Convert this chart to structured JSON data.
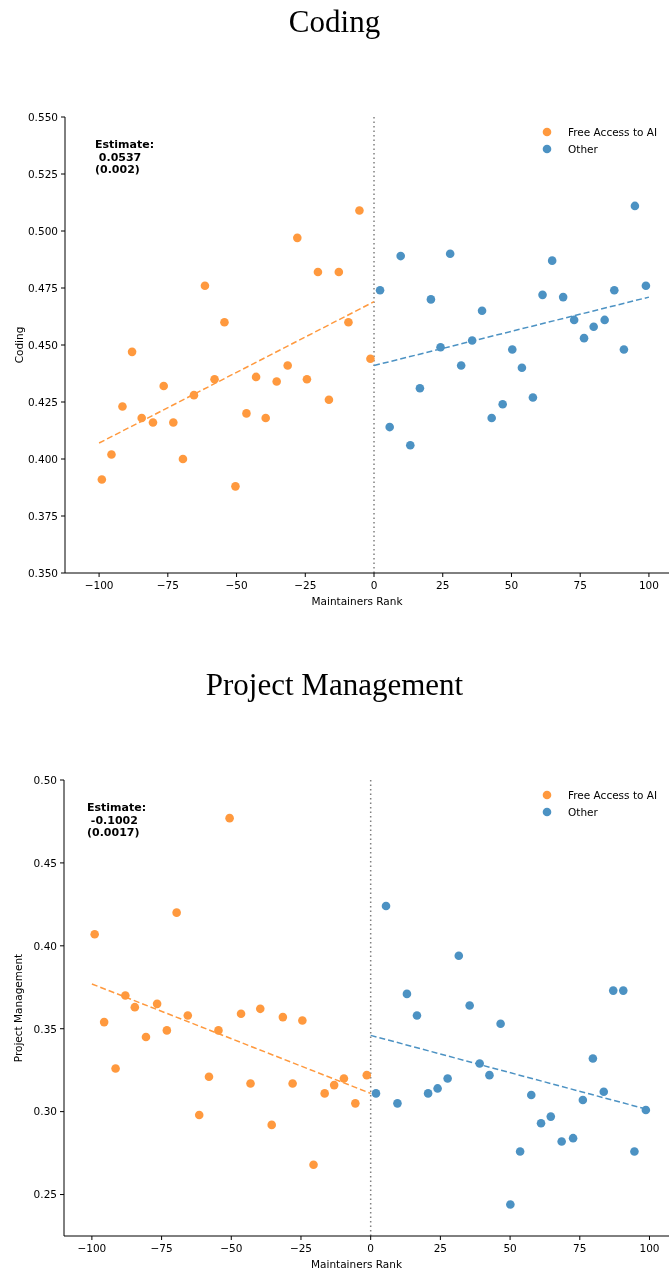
{
  "chart_data": [
    {
      "type": "scatter",
      "title": "Coding",
      "xlabel": "Maintainers Rank",
      "ylabel": "Coding",
      "xlim": [
        -112.4,
        107.3
      ],
      "ylim": [
        0.35,
        0.55
      ],
      "xticks": [
        {
          "value": -100,
          "label": "−100"
        },
        {
          "value": -75,
          "label": "−75"
        },
        {
          "value": -50,
          "label": "−50"
        },
        {
          "value": -25,
          "label": "−25"
        },
        0,
        25,
        50,
        75,
        100
      ],
      "yticks": [
        {
          "value": 0.35,
          "label": "0.350"
        },
        {
          "value": 0.375,
          "label": "0.375"
        },
        {
          "value": 0.4,
          "label": "0.400"
        },
        {
          "value": 0.425,
          "label": "0.425"
        },
        {
          "value": 0.45,
          "label": "0.450"
        },
        {
          "value": 0.475,
          "label": "0.475"
        },
        {
          "value": 0.5,
          "label": "0.500"
        },
        {
          "value": 0.525,
          "label": "0.525"
        },
        {
          "value": 0.55,
          "label": "0.550"
        }
      ],
      "legend": "top right",
      "marker": "circle",
      "grid": false,
      "annotations": [
        "Estimate:\n 0.0537\n(0.002)"
      ],
      "ref_lines": [
        {
          "axis": "x",
          "value": 0,
          "color": "#808080",
          "line_style": "dotted"
        }
      ],
      "series": [
        {
          "name": "Free Access to AI",
          "color": "#ff993e",
          "x": [
            -99.0,
            -95.5,
            -91.5,
            -88.0,
            -84.5,
            -80.4,
            -76.5,
            -73.0,
            -69.5,
            -65.5,
            -61.5,
            -58.0,
            -54.4,
            -50.4,
            -46.4,
            -42.9,
            -39.4,
            -35.4,
            -31.4,
            -27.9,
            -24.4,
            -20.4,
            -16.4,
            -12.8,
            -9.3,
            -5.3,
            -1.3
          ],
          "values": [
            0.391,
            0.402,
            0.423,
            0.447,
            0.418,
            0.416,
            0.432,
            0.416,
            0.4,
            0.428,
            0.476,
            0.435,
            0.46,
            0.388,
            0.42,
            0.436,
            0.418,
            0.434,
            0.441,
            0.497,
            0.435,
            0.482,
            0.426,
            0.482,
            0.46,
            0.509,
            0.444
          ]
        },
        {
          "name": "Other",
          "color": "#4c92c3",
          "x": [
            2.2,
            5.7,
            9.7,
            13.2,
            16.7,
            20.7,
            24.2,
            27.7,
            31.7,
            35.7,
            39.3,
            42.8,
            46.8,
            50.3,
            53.8,
            57.8,
            61.3,
            64.8,
            68.8,
            72.8,
            76.4,
            79.9,
            83.9,
            87.4,
            90.9,
            94.9,
            98.9
          ],
          "values": [
            0.474,
            0.414,
            0.489,
            0.406,
            0.431,
            0.47,
            0.449,
            0.49,
            0.441,
            0.452,
            0.465,
            0.418,
            0.424,
            0.448,
            0.44,
            0.427,
            0.472,
            0.487,
            0.471,
            0.461,
            0.453,
            0.458,
            0.461,
            0.474,
            0.448,
            0.511,
            0.476
          ]
        },
        {
          "color": "#ff993e",
          "type": "line",
          "marker": "none",
          "line_style": "dashed",
          "x": [
            -100,
            0
          ],
          "values": [
            0.407,
            0.469
          ]
        },
        {
          "color": "#4c92c3",
          "type": "line",
          "marker": "none",
          "line_style": "dashed",
          "x": [
            0,
            100
          ],
          "values": [
            0.441,
            0.471
          ]
        }
      ]
    },
    {
      "type": "scatter",
      "title": "Project Management",
      "xlabel": "Maintainers Rank",
      "ylabel": "Project Management",
      "xlim": [
        -110,
        107
      ],
      "ylim": [
        0.225,
        0.5
      ],
      "xticks": [
        {
          "value": -100,
          "label": "−100"
        },
        {
          "value": -75,
          "label": "−75"
        },
        {
          "value": -50,
          "label": "−50"
        },
        {
          "value": -25,
          "label": "−25"
        },
        0,
        25,
        50,
        75,
        100
      ],
      "yticks": [
        {
          "value": 0.25,
          "label": "0.25"
        },
        {
          "value": 0.3,
          "label": "0.30"
        },
        {
          "value": 0.35,
          "label": "0.35"
        },
        {
          "value": 0.4,
          "label": "0.40"
        },
        {
          "value": 0.45,
          "label": "0.45"
        },
        {
          "value": 0.5,
          "label": "0.50"
        }
      ],
      "legend": "top right",
      "marker": "circle",
      "grid": false,
      "annotations": [
        "Estimate:\n -0.1002\n(0.0017)"
      ],
      "ref_lines": [
        {
          "axis": "x",
          "value": 0,
          "color": "#808080",
          "line_style": "dotted"
        }
      ],
      "series": [
        {
          "name": "Free Access to AI",
          "color": "#ff993e",
          "x": [
            -99.0,
            -95.6,
            -91.5,
            -88.0,
            -84.6,
            -80.6,
            -76.6,
            -73.1,
            -69.6,
            -65.6,
            -61.5,
            -58.0,
            -54.6,
            -50.6,
            -46.5,
            -43.1,
            -39.6,
            -35.5,
            -31.5,
            -28.0,
            -24.5,
            -20.5,
            -16.5,
            -13.1,
            -9.6,
            -5.5,
            -1.4
          ],
          "values": [
            0.407,
            0.354,
            0.326,
            0.37,
            0.363,
            0.345,
            0.365,
            0.349,
            0.42,
            0.358,
            0.298,
            0.321,
            0.349,
            0.477,
            0.359,
            0.317,
            0.362,
            0.292,
            0.357,
            0.317,
            0.355,
            0.268,
            0.311,
            0.316,
            0.32,
            0.305,
            0.322
          ]
        },
        {
          "name": "Other",
          "color": "#4c92c3",
          "x": [
            1.9,
            5.5,
            9.6,
            13.0,
            16.6,
            20.6,
            24.0,
            27.6,
            31.6,
            35.5,
            39.1,
            42.6,
            46.6,
            50.1,
            53.6,
            57.6,
            61.1,
            64.6,
            68.5,
            72.6,
            76.1,
            79.7,
            83.6,
            87.0,
            90.6,
            94.6,
            98.7
          ],
          "values": [
            0.311,
            0.424,
            0.305,
            0.371,
            0.358,
            0.311,
            0.314,
            0.32,
            0.394,
            0.364,
            0.329,
            0.322,
            0.353,
            0.244,
            0.276,
            0.31,
            0.293,
            0.297,
            0.282,
            0.284,
            0.307,
            0.332,
            0.312,
            0.373,
            0.373,
            0.276,
            0.301
          ]
        },
        {
          "color": "#ff993e",
          "type": "line",
          "marker": "none",
          "line_style": "dashed",
          "x": [
            -100,
            0
          ],
          "values": [
            0.377,
            0.311
          ]
        },
        {
          "color": "#4c92c3",
          "type": "line",
          "marker": "none",
          "line_style": "dashed",
          "x": [
            0,
            100
          ],
          "values": [
            0.346,
            0.301
          ]
        }
      ]
    }
  ]
}
